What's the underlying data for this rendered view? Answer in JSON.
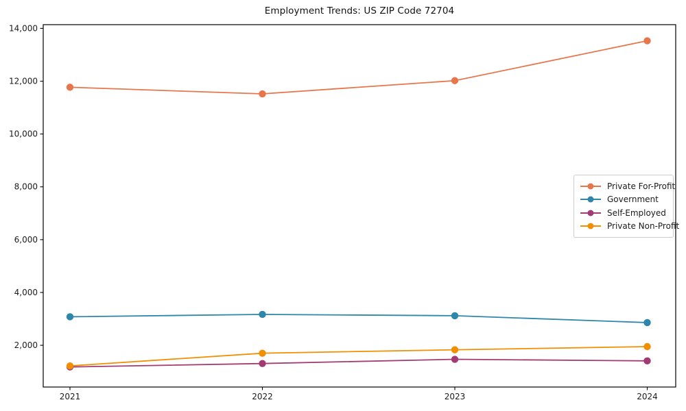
{
  "figure": {
    "background_color": "#ffffff",
    "axes_edge_color": "#000000",
    "tick_label_color": "#1a1a1a"
  },
  "chart_data": {
    "type": "line",
    "title": "Employment Trends: US ZIP Code 72704",
    "xlabel": "",
    "ylabel": "",
    "grid": false,
    "x_categories": [
      "2021",
      "2022",
      "2023",
      "2024"
    ],
    "y_ticks": [
      2000,
      4000,
      6000,
      8000,
      10000,
      12000,
      14000
    ],
    "y_tick_labels": [
      "2,000",
      "4,000",
      "6,000",
      "8,000",
      "10,000",
      "12,000",
      "14,000"
    ],
    "ylim": [
      420,
      14140
    ],
    "marker": "circle",
    "legend": {
      "position": "center-right",
      "border_color": "#cccccc",
      "background": "#ffffff"
    },
    "series": [
      {
        "name": "Private For-Profit",
        "color": "#E8764B",
        "values": [
          11770,
          11520,
          12020,
          13530
        ]
      },
      {
        "name": "Government",
        "color": "#2E86AB",
        "values": [
          3080,
          3170,
          3120,
          2860
        ]
      },
      {
        "name": "Self-Employed",
        "color": "#A23B72",
        "values": [
          1180,
          1310,
          1470,
          1410
        ]
      },
      {
        "name": "Private Non-Profit",
        "color": "#F18F01",
        "values": [
          1220,
          1700,
          1830,
          1950
        ]
      }
    ]
  }
}
